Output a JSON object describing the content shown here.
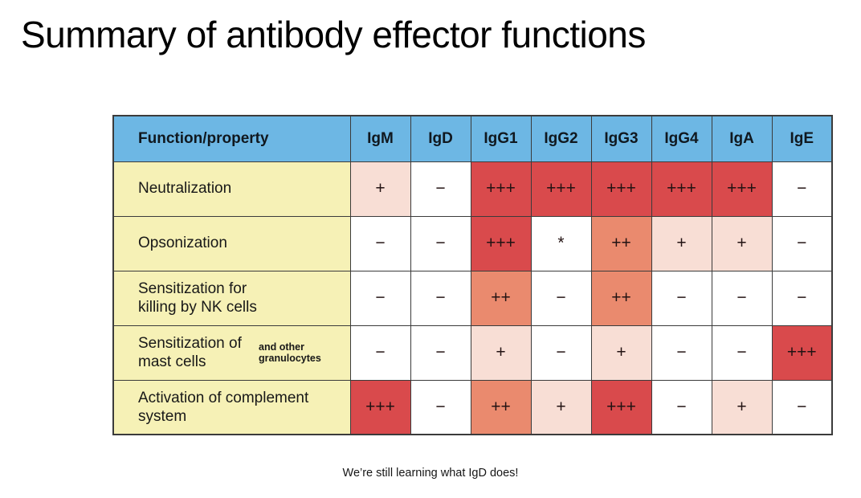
{
  "title": "Summary of antibody effector functions",
  "caption": "We’re still learning what IgD does!",
  "colors": {
    "header_bg": "#6db7e4",
    "function_bg": "#f6f1b6",
    "level_plus3": "#d94a4c",
    "level_plus2": "#ea8a6e",
    "level_plus1": "#f8ded5",
    "level_none": "#ffffff",
    "border": "#3b3b3b"
  },
  "table": {
    "header": [
      "Function/property",
      "IgM",
      "IgD",
      "IgG1",
      "IgG2",
      "IgG3",
      "IgG4",
      "IgA",
      "IgE"
    ],
    "rows": [
      {
        "function": "Neutralization",
        "note": "",
        "cells": [
          {
            "text": "+",
            "level": "plus1"
          },
          {
            "text": "−",
            "level": "none"
          },
          {
            "text": "+++",
            "level": "plus3"
          },
          {
            "text": "+++",
            "level": "plus3"
          },
          {
            "text": "+++",
            "level": "plus3"
          },
          {
            "text": "+++",
            "level": "plus3"
          },
          {
            "text": "+++",
            "level": "plus3"
          },
          {
            "text": "−",
            "level": "none"
          }
        ]
      },
      {
        "function": "Opsonization",
        "note": "",
        "cells": [
          {
            "text": "−",
            "level": "none"
          },
          {
            "text": "−",
            "level": "none"
          },
          {
            "text": "+++",
            "level": "plus3"
          },
          {
            "text": "*",
            "level": "none"
          },
          {
            "text": "++",
            "level": "plus2"
          },
          {
            "text": "+",
            "level": "plus1"
          },
          {
            "text": "+",
            "level": "plus1"
          },
          {
            "text": "−",
            "level": "none"
          }
        ]
      },
      {
        "function": "Sensitization for killing by NK cells",
        "note": "",
        "cells": [
          {
            "text": "−",
            "level": "none"
          },
          {
            "text": "−",
            "level": "none"
          },
          {
            "text": "++",
            "level": "plus2"
          },
          {
            "text": "−",
            "level": "none"
          },
          {
            "text": "++",
            "level": "plus2"
          },
          {
            "text": "−",
            "level": "none"
          },
          {
            "text": "−",
            "level": "none"
          },
          {
            "text": "−",
            "level": "none"
          }
        ]
      },
      {
        "function": "Sensitization of mast cells",
        "note": "and other granulocytes",
        "cells": [
          {
            "text": "−",
            "level": "none"
          },
          {
            "text": "−",
            "level": "none"
          },
          {
            "text": "+",
            "level": "plus1"
          },
          {
            "text": "−",
            "level": "none"
          },
          {
            "text": "+",
            "level": "plus1"
          },
          {
            "text": "−",
            "level": "none"
          },
          {
            "text": "−",
            "level": "none"
          },
          {
            "text": "+++",
            "level": "plus3"
          }
        ]
      },
      {
        "function": "Activation of complement system",
        "note": "",
        "cells": [
          {
            "text": "+++",
            "level": "plus3"
          },
          {
            "text": "−",
            "level": "none"
          },
          {
            "text": "++",
            "level": "plus2"
          },
          {
            "text": "+",
            "level": "plus1"
          },
          {
            "text": "+++",
            "level": "plus3"
          },
          {
            "text": "−",
            "level": "none"
          },
          {
            "text": "+",
            "level": "plus1"
          },
          {
            "text": "−",
            "level": "none"
          }
        ]
      }
    ]
  }
}
